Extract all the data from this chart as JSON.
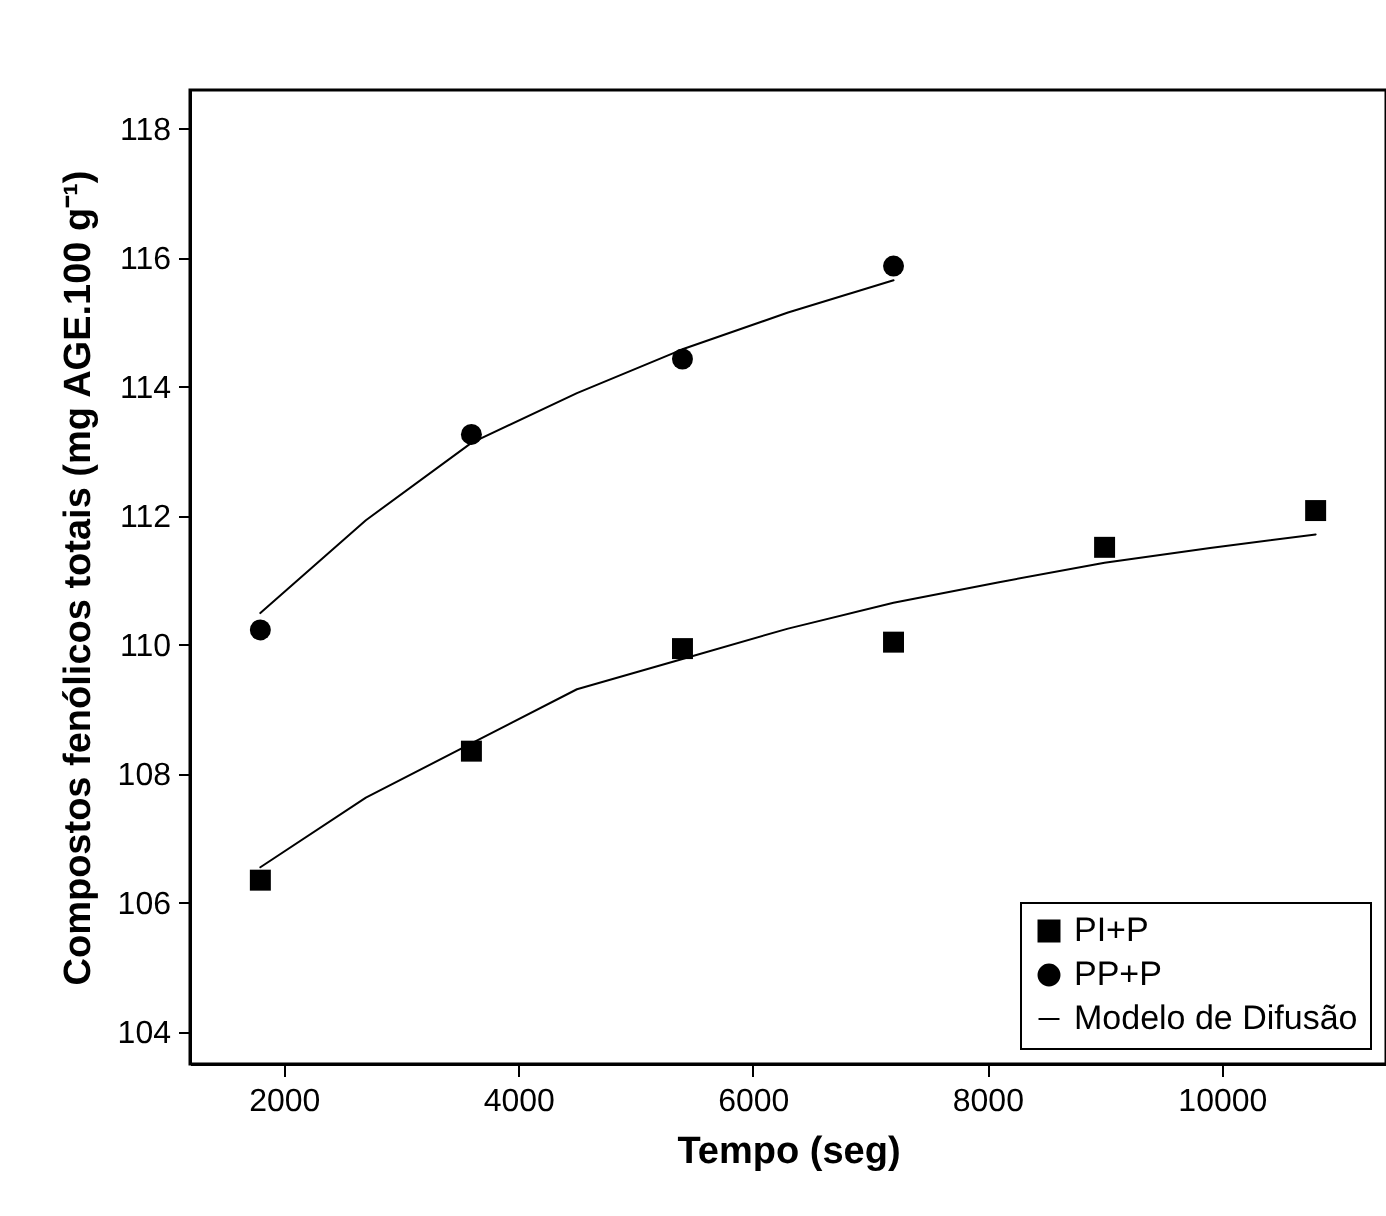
{
  "chart_data": {
    "type": "scatter",
    "xlabel": "Tempo (seg)",
    "ylabel": "Compostos fenólicos totais (mg AGE.100 g⁻¹)",
    "xlim": [
      1200,
      11400
    ],
    "xticks": [
      2000,
      4000,
      6000,
      8000,
      10000
    ],
    "ylim": [
      103.5,
      118.6
    ],
    "yticks": [
      104,
      106,
      108,
      110,
      112,
      114,
      116,
      118
    ],
    "grid": false,
    "legend": "bottom right",
    "series": [
      {
        "name": "PI+P",
        "marker": "square",
        "color": "#000000",
        "x": [
          1800,
          3600,
          5400,
          7200,
          9000,
          10800
        ],
        "values": [
          106.35,
          108.35,
          109.94,
          110.04,
          111.51,
          112.08
        ]
      },
      {
        "name": "PP+P",
        "marker": "circle",
        "color": "#000000",
        "x": [
          1800,
          3600,
          5400,
          7200
        ],
        "values": [
          110.23,
          113.26,
          114.43,
          115.87
        ]
      },
      {
        "name": "Modelo de Difusão",
        "type": "line",
        "line_style": "solid",
        "color": "#000000",
        "x": [
          1800,
          2700,
          3600,
          4500,
          5400,
          6300,
          7200,
          8100,
          9000,
          9900,
          10800
        ],
        "values": [
          106.55,
          107.63,
          108.47,
          109.31,
          109.78,
          110.25,
          110.65,
          110.97,
          111.27,
          111.5,
          111.71
        ]
      },
      {
        "type": "line",
        "line_style": "solid",
        "color": "#000000",
        "x": [
          1800,
          2700,
          3600,
          4500,
          5400,
          6300,
          7200
        ],
        "values": [
          110.49,
          111.93,
          113.13,
          113.9,
          114.58,
          115.15,
          115.65
        ]
      }
    ]
  }
}
